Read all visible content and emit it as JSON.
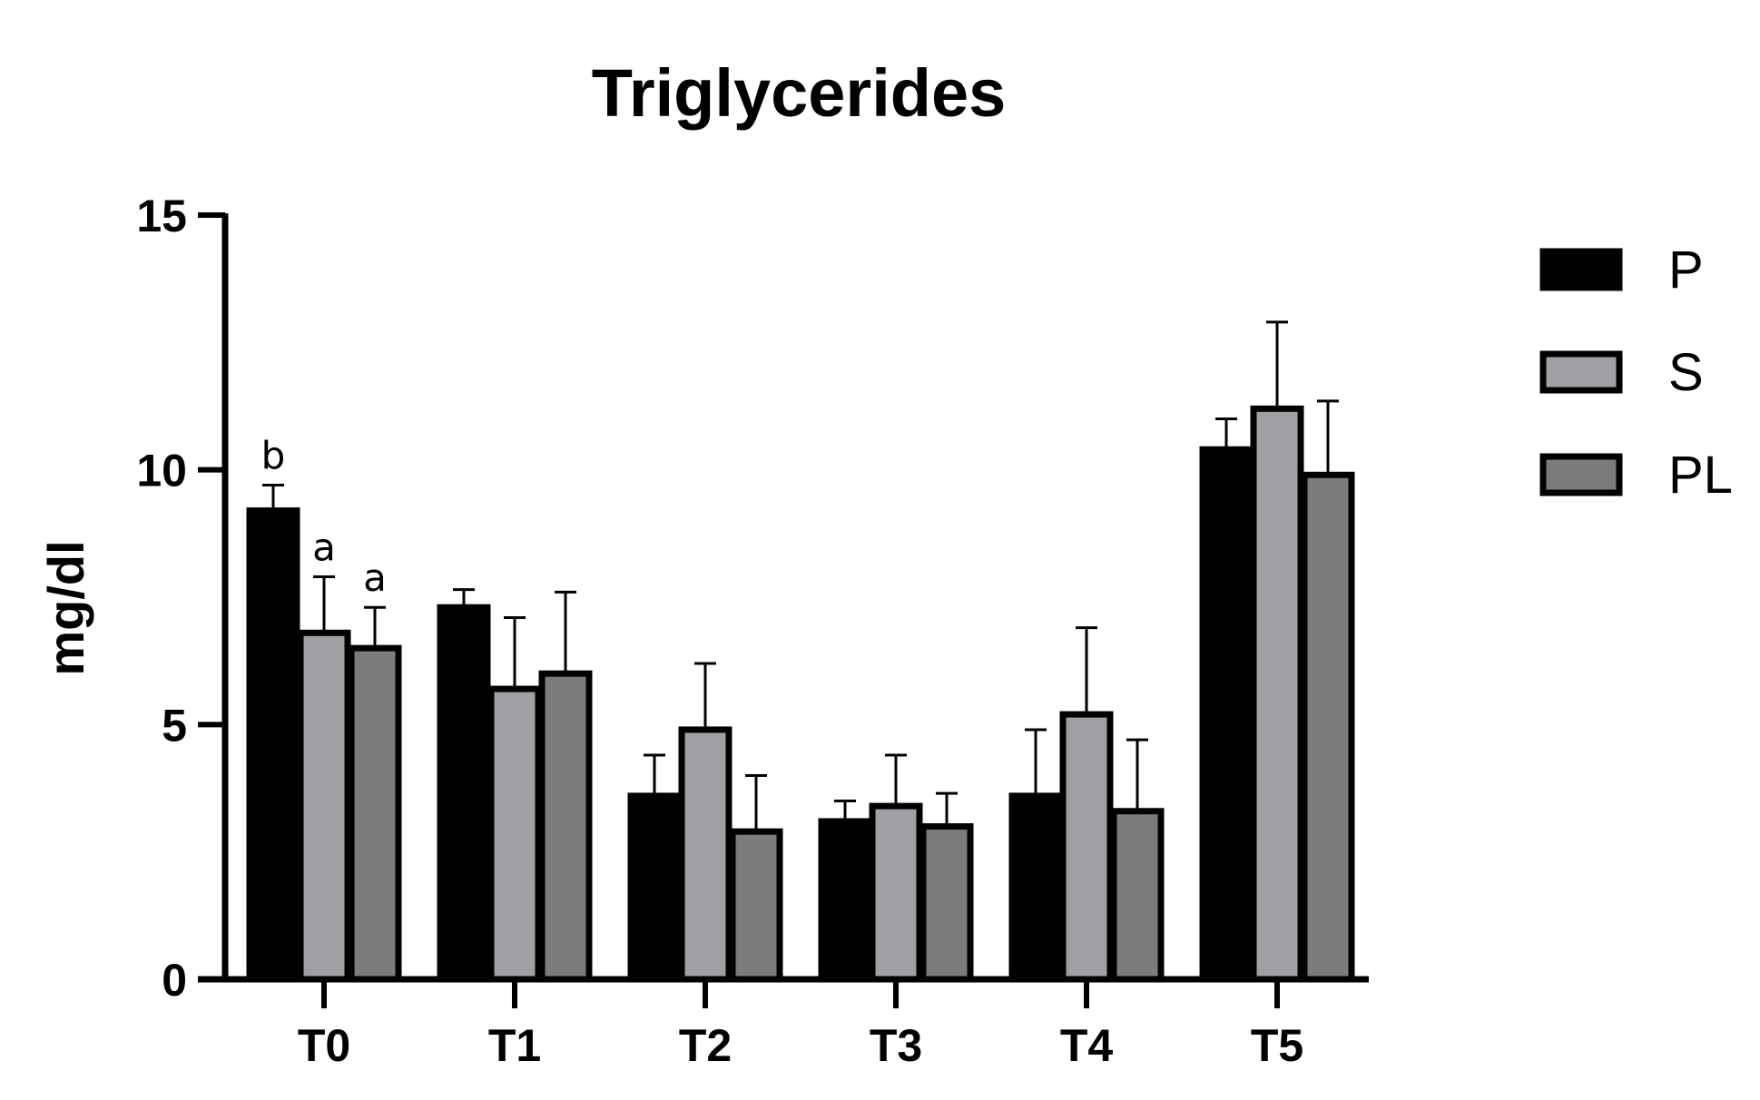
{
  "chart_data": {
    "type": "bar",
    "title": "Triglycerides",
    "xlabel": "",
    "ylabel": "mg/dl",
    "ylim": [
      0,
      15
    ],
    "yticks": [
      "0",
      "5",
      "10",
      "15"
    ],
    "categories": [
      "T0",
      "T1",
      "T2",
      "T3",
      "T4",
      "T5"
    ],
    "grid": false,
    "legend_position": "right",
    "series": [
      {
        "name": "P",
        "color": "#000000",
        "values": [
          9.2,
          7.3,
          3.6,
          3.1,
          3.6,
          10.4
        ],
        "errors": [
          0.5,
          0.35,
          0.8,
          0.4,
          1.3,
          0.6
        ]
      },
      {
        "name": "S",
        "color": "#a0a0a4",
        "values": [
          6.8,
          5.7,
          4.9,
          3.4,
          5.2,
          11.2
        ],
        "errors": [
          1.1,
          1.4,
          1.3,
          1.0,
          1.7,
          1.7
        ]
      },
      {
        "name": "PL",
        "color": "#7c7c7c",
        "values": [
          6.5,
          6.0,
          2.9,
          3.0,
          3.3,
          9.9
        ],
        "errors": [
          0.8,
          1.6,
          1.1,
          0.65,
          1.4,
          1.45
        ]
      }
    ],
    "annotations": [
      {
        "category": "T0",
        "series": "P",
        "text": "b"
      },
      {
        "category": "T0",
        "series": "S",
        "text": "a"
      },
      {
        "category": "T0",
        "series": "PL",
        "text": "a"
      }
    ]
  }
}
